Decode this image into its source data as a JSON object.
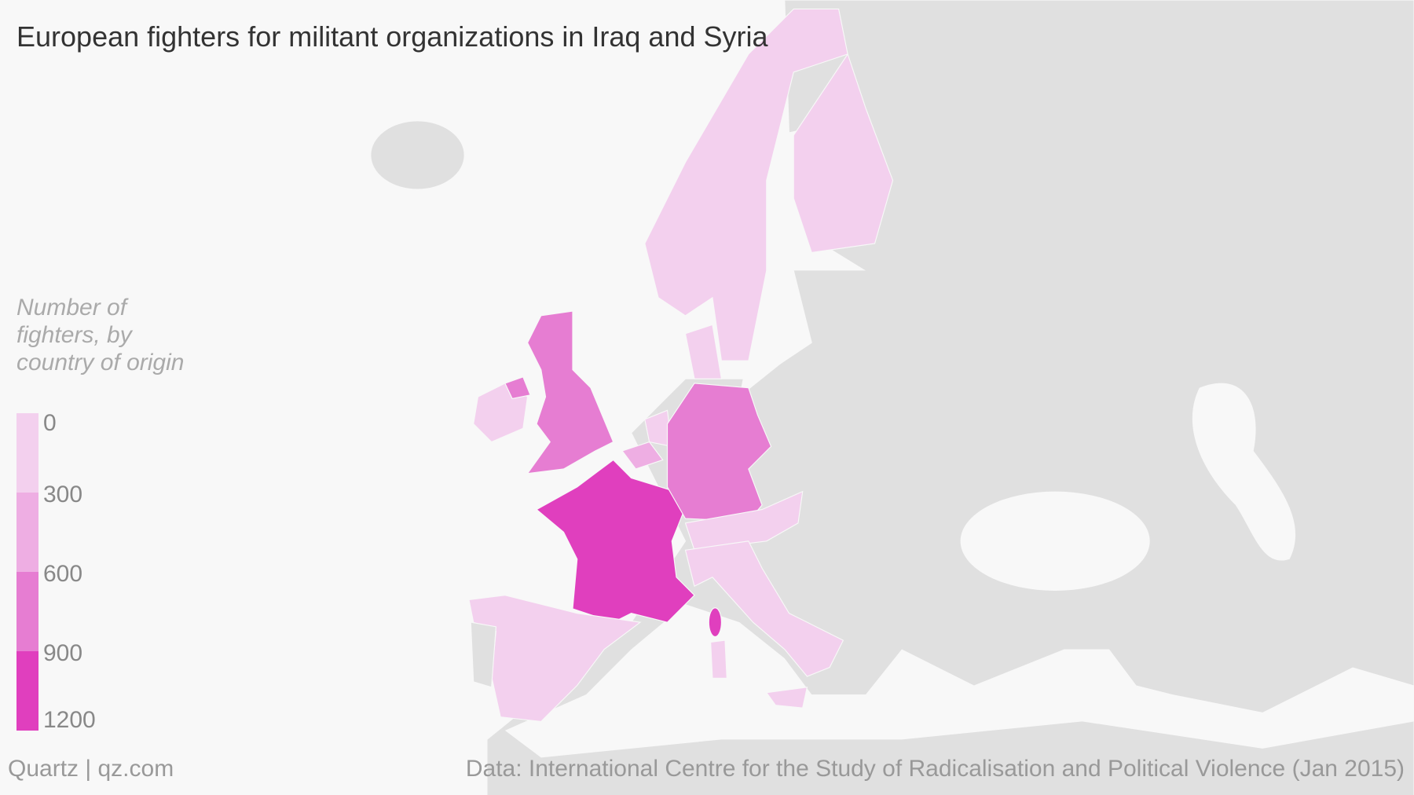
{
  "title": "European fighters for militant organizations in Iraq and Syria",
  "legend": {
    "title": "Number of fighters, by country of origin",
    "ticks": [
      0,
      300,
      600,
      900,
      1200
    ],
    "colors": [
      "#f3d0ee",
      "#eeaee3",
      "#e67dd2",
      "#e03fbe"
    ]
  },
  "credit": "Quartz | qz.com",
  "source": "Data: International Centre for the Study of Radicalisation and Political Violence (Jan 2015)"
}
